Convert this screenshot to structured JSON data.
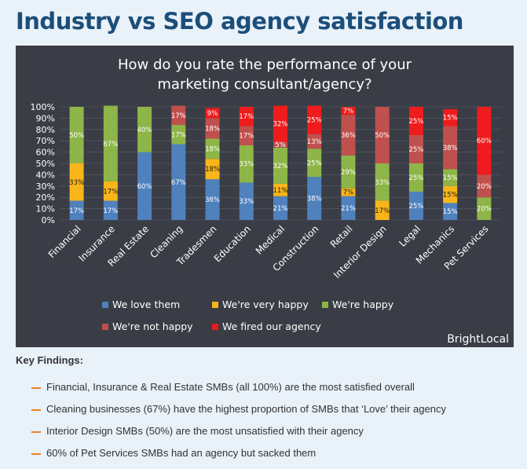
{
  "page": {
    "title": "Industry vs SEO agency satisfaction",
    "key_findings_heading": "Key Findings:",
    "findings": [
      "Financial, Insurance & Real Estate SMBs (all 100%) are the most satisfied overall",
      "Cleaning businesses (67%) have the highest proportion of SMBs that ‘Love’ their agency",
      "Interior Design SMBs (50%) are the most unsatisfied with their agency",
      "60% of Pet Services SMBs had an agency but sacked them"
    ]
  },
  "chart_data": {
    "type": "bar",
    "stacked": true,
    "title": "How do you rate the performance of your marketing consultant/agency?",
    "title_lines": [
      "How do you rate the performance of your",
      "marketing consultant/agency?"
    ],
    "brand": "BrightLocal",
    "ylim": [
      0,
      100
    ],
    "yticks": [
      "0%",
      "10%",
      "20%",
      "30%",
      "40%",
      "50%",
      "60%",
      "70%",
      "80%",
      "90%",
      "100%"
    ],
    "legend_position": "bottom",
    "categories": [
      "Financial",
      "Insurance",
      "Real Estate",
      "Cleaning",
      "Tradesmen",
      "Education",
      "Medical",
      "Construction",
      "Retail",
      "Interior Design",
      "Legal",
      "Mechanics",
      "Pet Services"
    ],
    "series": [
      {
        "name": "We love them",
        "color": "#4f81bd",
        "values": [
          17,
          17,
          60,
          67,
          36,
          33,
          21,
          38,
          21,
          0,
          25,
          15,
          0
        ],
        "labels": [
          "17%",
          "17%",
          "60%",
          "67%",
          "36%",
          "33%",
          "21%",
          "38%",
          "21%",
          "",
          "25%",
          "15%",
          ""
        ]
      },
      {
        "name": "We're very happy",
        "color": "#f9b51a",
        "values": [
          33,
          17,
          0,
          0,
          18,
          0,
          11,
          0,
          7,
          17,
          0,
          15,
          0
        ],
        "labels": [
          "33%",
          "17%",
          "",
          "",
          "18%",
          "",
          "11%",
          "",
          "7%",
          "17%",
          "",
          "15%",
          ""
        ]
      },
      {
        "name": "We're happy",
        "color": "#8db547",
        "values": [
          50,
          67,
          40,
          17,
          18,
          33,
          32,
          25,
          29,
          33,
          25,
          15,
          20
        ],
        "labels": [
          "50%",
          "67%",
          "40%",
          "17%",
          "18%",
          "33%",
          "32%",
          "25%",
          "29%",
          "33%",
          "25%",
          "15%",
          "20%"
        ]
      },
      {
        "name": "We're not happy",
        "color": "#c0504d",
        "values": [
          0,
          0,
          0,
          17,
          18,
          17,
          5,
          13,
          36,
          50,
          25,
          38,
          20
        ],
        "labels": [
          "",
          "",
          "",
          "17%",
          "18%",
          "17%",
          "5%",
          "13%",
          "36%",
          "50%",
          "25%",
          "38%",
          "20%"
        ]
      },
      {
        "name": "We fired our agency",
        "color": "#ee1c1c",
        "values": [
          0,
          0,
          0,
          0,
          9,
          17,
          32,
          25,
          7,
          0,
          25,
          15,
          60
        ],
        "labels": [
          "",
          "",
          "",
          "",
          "9%",
          "17%",
          "32%",
          "25%",
          "7%",
          "",
          "25%",
          "15%",
          "60%"
        ]
      }
    ]
  }
}
